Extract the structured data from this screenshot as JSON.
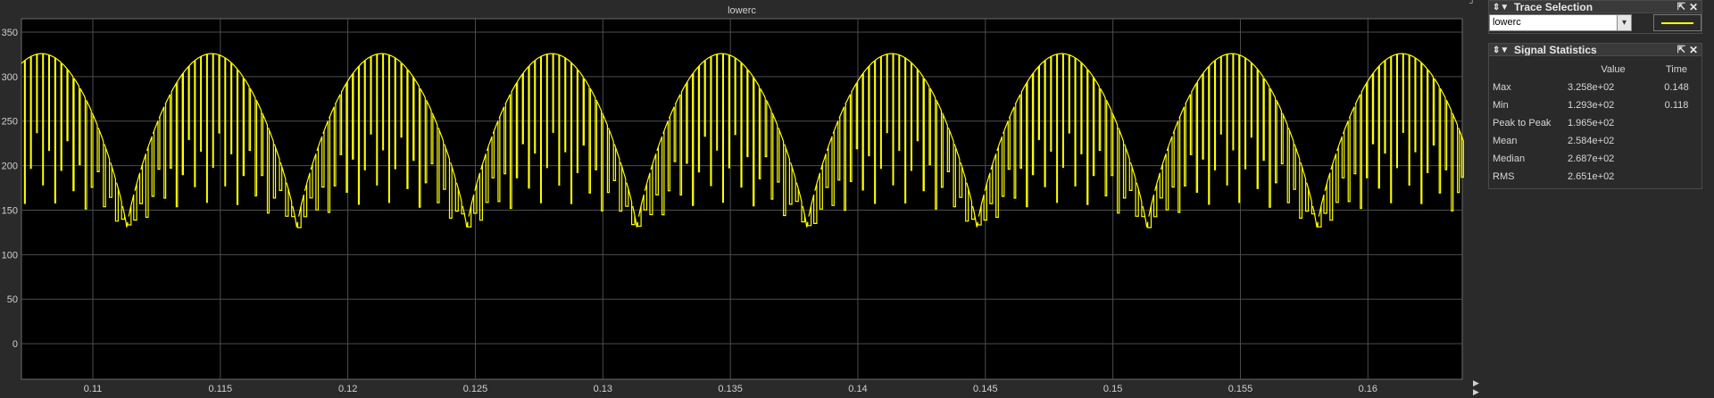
{
  "scope": {
    "title": "lowerc",
    "line_color": "#ffff00",
    "background": "#000000",
    "grid_color": "#4d4d4d"
  },
  "chart_data": {
    "type": "line",
    "title": "lowerc",
    "xlabel": "",
    "ylabel": "",
    "xlim": [
      0.1072,
      0.1637
    ],
    "ylim": [
      -40,
      365
    ],
    "xticks": [
      0.11,
      0.115,
      0.12,
      0.125,
      0.13,
      0.135,
      0.14,
      0.145,
      0.15,
      0.155,
      0.16
    ],
    "xtick_labels": [
      "0.11",
      "0.115",
      "0.12",
      "0.125",
      "0.13",
      "0.135",
      "0.14",
      "0.145",
      "0.15",
      "0.155",
      "0.16"
    ],
    "yticks": [
      0,
      50,
      100,
      150,
      200,
      250,
      300,
      350
    ],
    "ytick_labels": [
      "0",
      "50",
      "100",
      "150",
      "200",
      "250",
      "300",
      "350"
    ],
    "grid": true,
    "series": [
      {
        "name": "lowerc",
        "waveform": "rectified sine envelope with PWM notches",
        "period": 0.006667,
        "peak": {
          "x": 0.148,
          "y": 325.8
        },
        "trough": {
          "x": 0.118,
          "y": 129.3
        },
        "approx_peaks_x": [
          0.1085,
          0.1148,
          0.1215,
          0.1282,
          0.1348,
          0.1415,
          0.1482,
          0.1548,
          0.1615
        ],
        "approx_troughs_x": [
          0.1115,
          0.1182,
          0.1248,
          0.1315,
          0.1382,
          0.1448,
          0.1515,
          0.1582
        ],
        "min": 129.3,
        "max": 325.8
      }
    ]
  },
  "trace_selection": {
    "title": "Trace Selection",
    "selected": "lowerc",
    "swatch_color": "#ffff00"
  },
  "signal_statistics": {
    "title": "Signal Statistics",
    "headers": [
      "",
      "Value",
      "Time"
    ],
    "rows": [
      {
        "label": "Max",
        "value": "3.258e+02",
        "time": "0.148"
      },
      {
        "label": "Min",
        "value": "1.293e+02",
        "time": "0.118"
      },
      {
        "label": "Peak to Peak",
        "value": "1.965e+02",
        "time": ""
      },
      {
        "label": "Mean",
        "value": "2.584e+02",
        "time": ""
      },
      {
        "label": "Median",
        "value": "2.687e+02",
        "time": ""
      },
      {
        "label": "RMS",
        "value": "2.651e+02",
        "time": ""
      }
    ]
  },
  "icons": {
    "panel_grip": "⇕▼",
    "undock": "⇱",
    "close": "✕",
    "dropdown": "▾",
    "corner": "▶"
  }
}
